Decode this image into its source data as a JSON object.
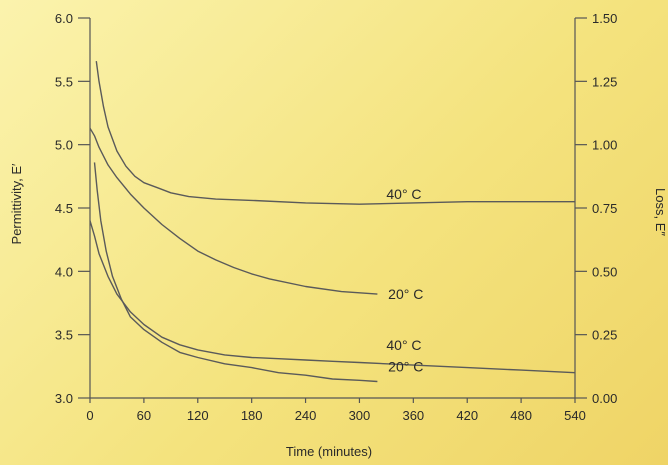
{
  "chart_data": {
    "type": "line",
    "xlabel": "Time (minutes)",
    "ylabel": "Permittivity, E′",
    "y2label": "Loss, E″",
    "xlim": [
      0,
      540
    ],
    "ylim": [
      3.0,
      6.0
    ],
    "y2lim": [
      0.0,
      1.5
    ],
    "xticks": [
      0,
      60,
      120,
      180,
      240,
      300,
      360,
      420,
      480,
      540
    ],
    "yticks": [
      "3.0",
      "3.5",
      "4.0",
      "4.5",
      "5.0",
      "5.5",
      "6.0"
    ],
    "y2ticks": [
      "0.00",
      "0.25",
      "0.50",
      "0.75",
      "1.00",
      "1.25",
      "1.50"
    ],
    "grid": false,
    "series": [
      {
        "label": "40° C",
        "axis": "left",
        "points": [
          [
            7,
            5.66
          ],
          [
            10,
            5.5
          ],
          [
            15,
            5.3
          ],
          [
            20,
            5.14
          ],
          [
            30,
            4.95
          ],
          [
            40,
            4.83
          ],
          [
            50,
            4.75
          ],
          [
            60,
            4.7
          ],
          [
            75,
            4.66
          ],
          [
            90,
            4.62
          ],
          [
            110,
            4.59
          ],
          [
            140,
            4.57
          ],
          [
            180,
            4.56
          ],
          [
            240,
            4.54
          ],
          [
            300,
            4.53
          ],
          [
            360,
            4.54
          ],
          [
            420,
            4.55
          ],
          [
            480,
            4.55
          ],
          [
            540,
            4.55
          ]
        ]
      },
      {
        "label": "20° C",
        "axis": "left",
        "points": [
          [
            0,
            5.13
          ],
          [
            5,
            5.07
          ],
          [
            10,
            4.98
          ],
          [
            20,
            4.84
          ],
          [
            30,
            4.74
          ],
          [
            45,
            4.61
          ],
          [
            60,
            4.5
          ],
          [
            80,
            4.37
          ],
          [
            100,
            4.26
          ],
          [
            120,
            4.16
          ],
          [
            140,
            4.09
          ],
          [
            160,
            4.03
          ],
          [
            180,
            3.98
          ],
          [
            200,
            3.94
          ],
          [
            240,
            3.88
          ],
          [
            280,
            3.84
          ],
          [
            320,
            3.82
          ]
        ]
      },
      {
        "label": "40° C",
        "axis": "right",
        "points": [
          [
            0,
            0.7
          ],
          [
            5,
            0.64
          ],
          [
            10,
            0.57
          ],
          [
            20,
            0.48
          ],
          [
            30,
            0.41
          ],
          [
            45,
            0.34
          ],
          [
            60,
            0.29
          ],
          [
            80,
            0.24
          ],
          [
            100,
            0.21
          ],
          [
            120,
            0.19
          ],
          [
            150,
            0.17
          ],
          [
            180,
            0.16
          ],
          [
            210,
            0.155
          ],
          [
            240,
            0.15
          ],
          [
            270,
            0.145
          ],
          [
            300,
            0.14
          ],
          [
            360,
            0.13
          ],
          [
            420,
            0.12
          ],
          [
            480,
            0.11
          ],
          [
            540,
            0.1
          ]
        ]
      },
      {
        "label": "20° C",
        "axis": "right",
        "points": [
          [
            5,
            0.93
          ],
          [
            8,
            0.82
          ],
          [
            12,
            0.7
          ],
          [
            18,
            0.58
          ],
          [
            25,
            0.48
          ],
          [
            35,
            0.39
          ],
          [
            45,
            0.32
          ],
          [
            60,
            0.27
          ],
          [
            80,
            0.22
          ],
          [
            100,
            0.18
          ],
          [
            120,
            0.16
          ],
          [
            150,
            0.135
          ],
          [
            180,
            0.12
          ],
          [
            210,
            0.1
          ],
          [
            240,
            0.09
          ],
          [
            270,
            0.075
          ],
          [
            300,
            0.07
          ],
          [
            320,
            0.065
          ]
        ]
      }
    ],
    "annotations": [
      {
        "text": "40° C",
        "x": 330,
        "y": 4.61,
        "axis": "left"
      },
      {
        "text": "20° C",
        "x": 332,
        "y": 3.82,
        "axis": "left"
      },
      {
        "text": "40° C",
        "x": 330,
        "y": 3.42,
        "axis": "left"
      },
      {
        "text": "20° C",
        "x": 332,
        "y": 3.25,
        "axis": "left"
      }
    ]
  }
}
